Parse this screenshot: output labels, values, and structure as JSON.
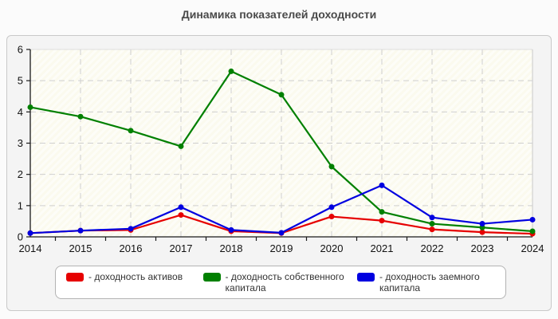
{
  "page": {
    "title": "Динамика показателей доходности"
  },
  "chart_data": {
    "type": "line",
    "title": "Динамика показателей доходности",
    "x": [
      "2014",
      "2015",
      "2016",
      "2017",
      "2018",
      "2019",
      "2020",
      "2021",
      "2022",
      "2023",
      "2024"
    ],
    "series": [
      {
        "name": "доходность активов",
        "color": "#e60000",
        "values": [
          0.12,
          0.2,
          0.22,
          0.7,
          0.18,
          0.12,
          0.65,
          0.52,
          0.24,
          0.15,
          0.1
        ]
      },
      {
        "name": "доходность собственного капитала",
        "color": "#008000",
        "values": [
          4.15,
          3.85,
          3.4,
          2.9,
          5.3,
          4.55,
          2.25,
          0.8,
          0.42,
          0.3,
          0.18
        ]
      },
      {
        "name": "доходность заемного капитала",
        "color": "#0000e0",
        "values": [
          0.12,
          0.2,
          0.26,
          0.95,
          0.22,
          0.13,
          0.95,
          1.65,
          0.62,
          0.42,
          0.55
        ]
      }
    ],
    "xlabel": "",
    "ylabel": "",
    "ylim": [
      0,
      6
    ],
    "yticks": [
      "0",
      "1",
      "2",
      "3",
      "4",
      "5",
      "6"
    ],
    "grid": "dashed horizontal and vertical",
    "marker": "circle",
    "legend_position": "bottom",
    "legend": [
      {
        "swatch_color": "#e60000",
        "label": "- доходность активов"
      },
      {
        "swatch_color": "#008000",
        "label": "- доходность собственного капитала"
      },
      {
        "swatch_color": "#0000e0",
        "label": "- доходность заемного капитала"
      }
    ]
  },
  "colors": {
    "page_background": "#fbfbfb",
    "panel_background": "#f4f4f4",
    "plot_background": "#fbfaee",
    "gridline": "#cfcfcf",
    "axis": "#1a1a1a",
    "title_text": "#4a4a4a"
  }
}
